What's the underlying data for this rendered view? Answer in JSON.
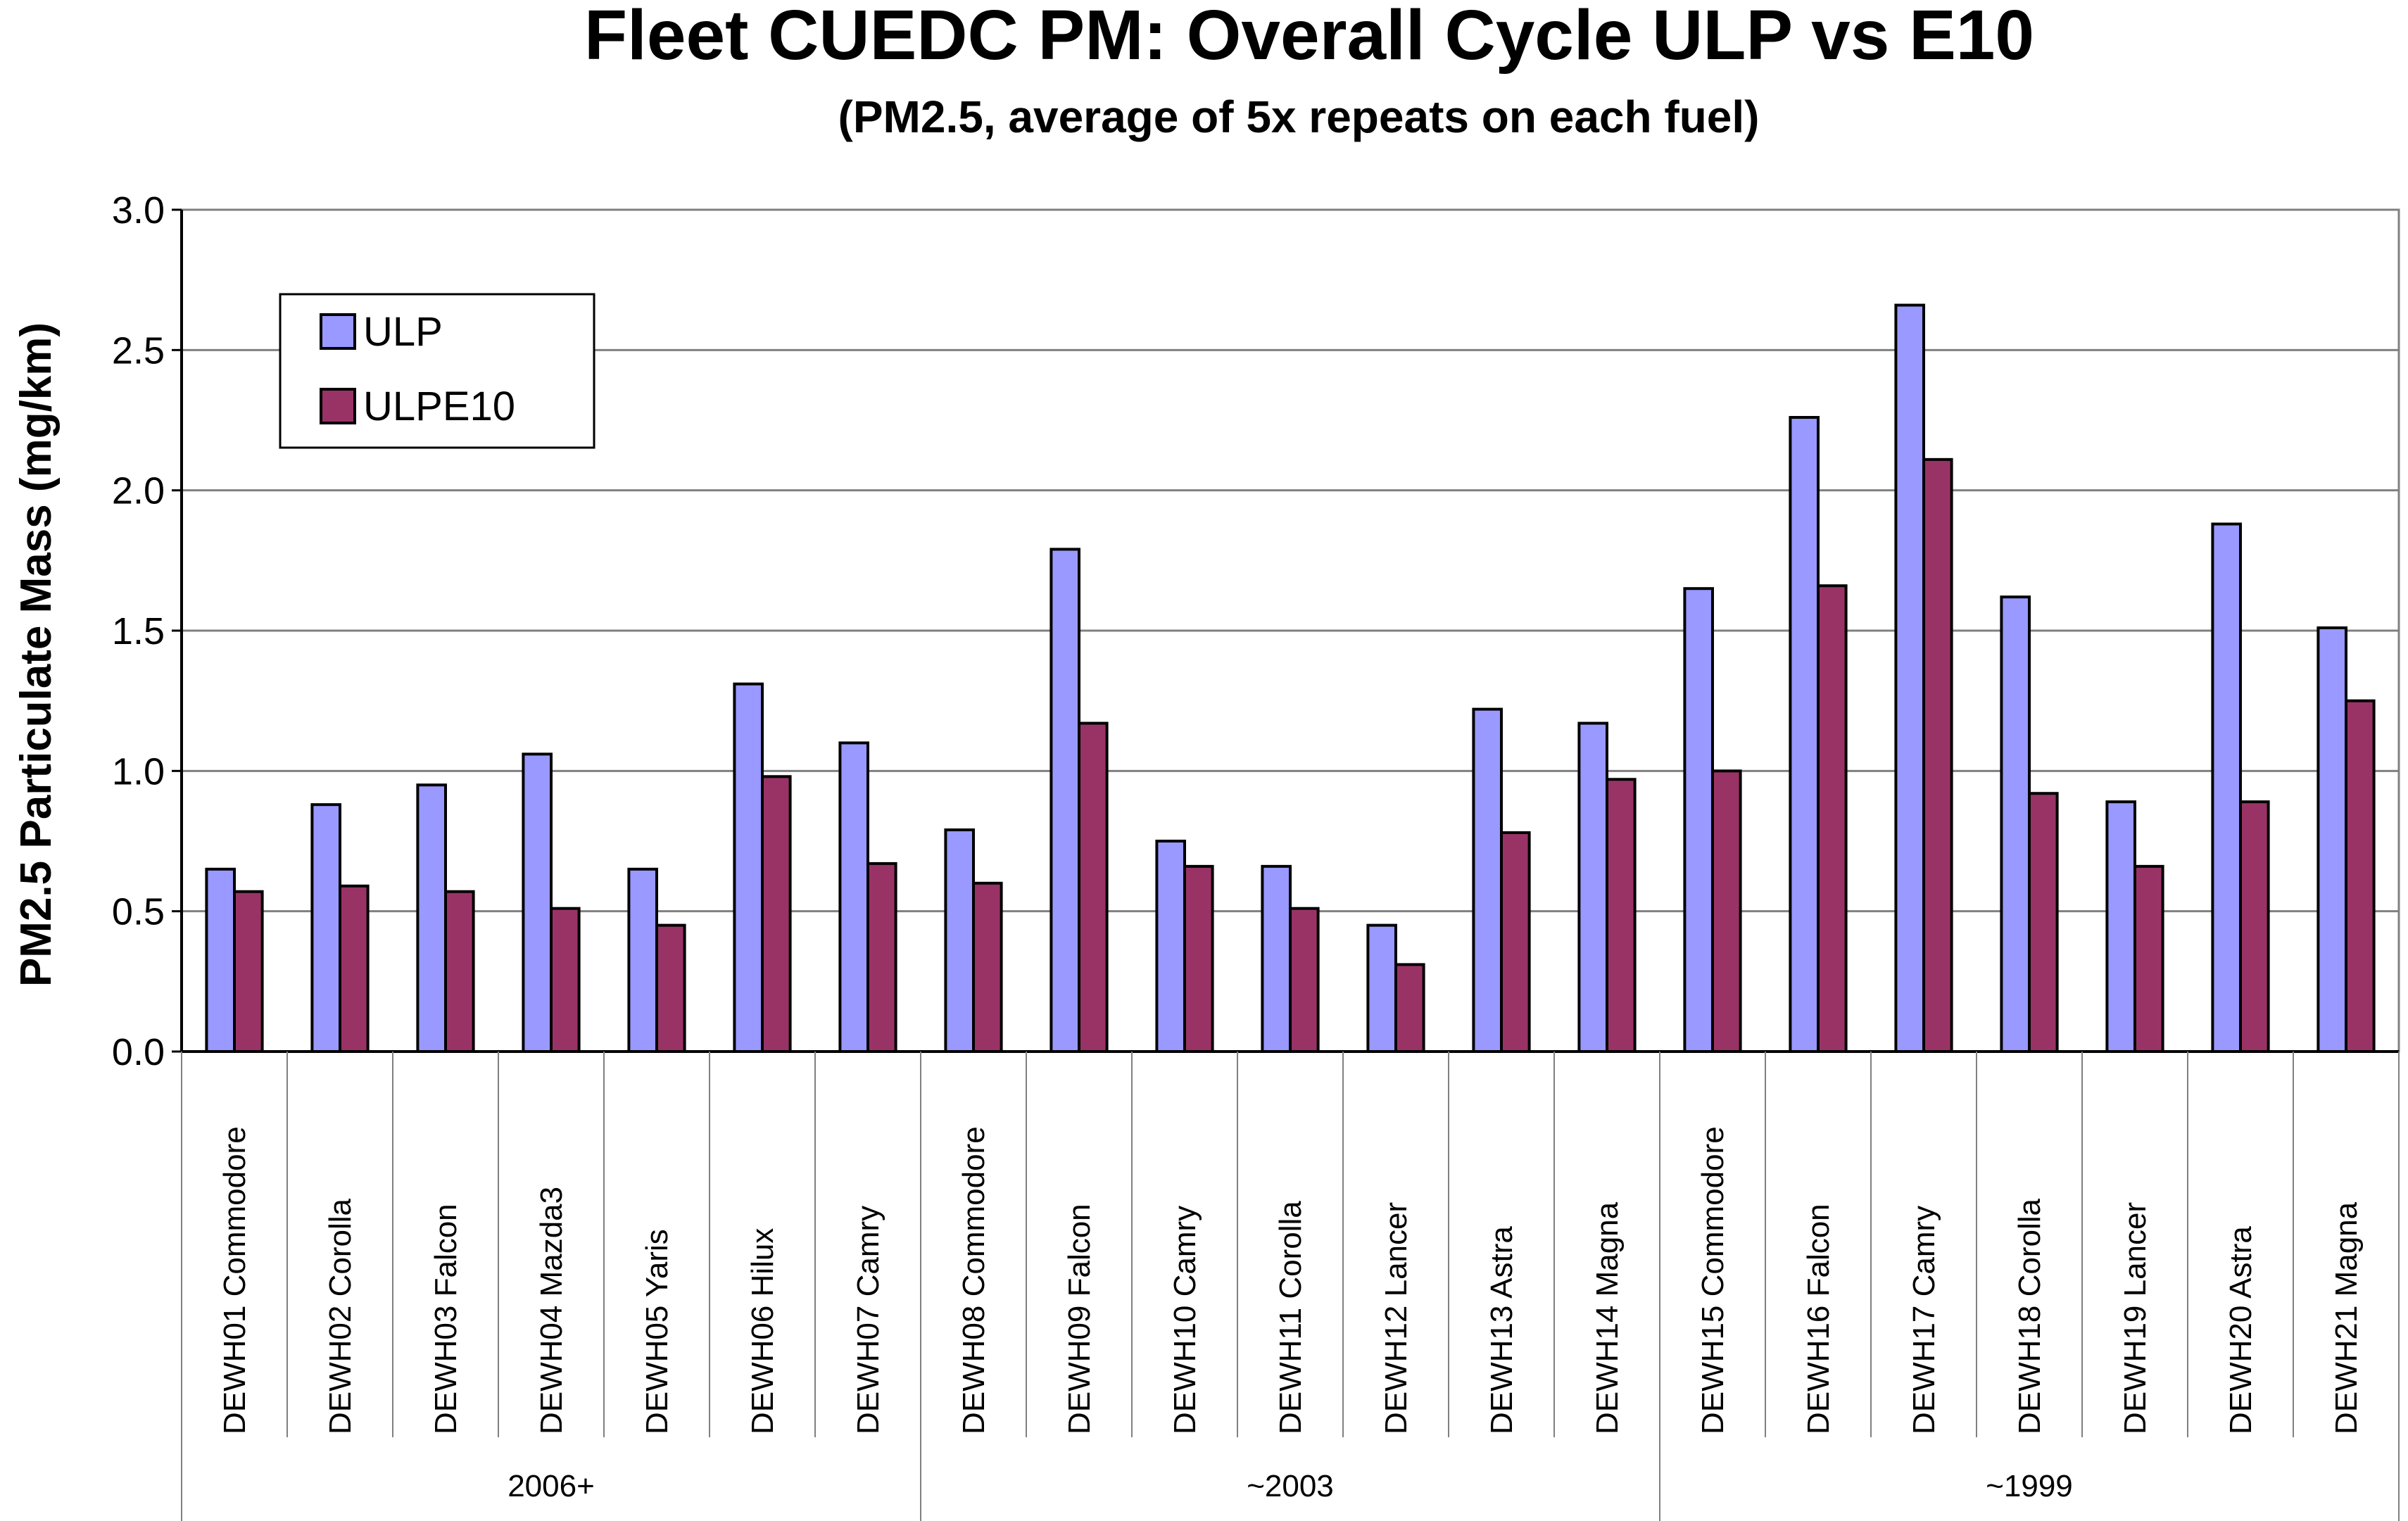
{
  "chart_data": {
    "type": "bar",
    "title": "Fleet CUEDC PM: Overall Cycle ULP vs E10",
    "subtitle": "(PM2.5, average of 5x repeats on each fuel)",
    "xlabel": "",
    "ylabel": "PM2.5 Particulate Mass (mg/km)",
    "ylim": [
      0,
      3.0
    ],
    "yticks": [
      "0.0",
      "0.5",
      "1.0",
      "1.5",
      "2.0",
      "2.5",
      "3.0"
    ],
    "grid": true,
    "legend_position": "top-left",
    "categories": [
      "DEWH01 Commodore",
      "DEWH02 Corolla",
      "DEWH03 Falcon",
      "DEWH04 Mazda3",
      "DEWH05 Yaris",
      "DEWH06 Hilux",
      "DEWH07 Camry",
      "DEWH08 Commodore",
      "DEWH09 Falcon",
      "DEWH10 Camry",
      "DEWH11 Corolla",
      "DEWH12 Lancer",
      "DEWH13 Astra",
      "DEWH14 Magna",
      "DEWH15 Commodore",
      "DEWH16 Falcon",
      "DEWH17 Camry",
      "DEWH18 Corolla",
      "DEWH19 Lancer",
      "DEWH20 Astra",
      "DEWH21 Magna"
    ],
    "groups": [
      {
        "label": "2006+",
        "count": 7
      },
      {
        "label": "~2003",
        "count": 7
      },
      {
        "label": "~1999",
        "count": 7
      }
    ],
    "series": [
      {
        "name": "ULP",
        "color": "#9999ff",
        "values": [
          0.65,
          0.88,
          0.95,
          1.06,
          0.65,
          1.31,
          1.1,
          0.79,
          1.79,
          0.75,
          0.66,
          0.45,
          1.22,
          1.17,
          1.65,
          2.26,
          2.66,
          1.62,
          0.89,
          1.88,
          1.51
        ]
      },
      {
        "name": "ULPE10",
        "color": "#993366",
        "values": [
          0.57,
          0.59,
          0.57,
          0.51,
          0.45,
          0.98,
          0.67,
          0.6,
          1.17,
          0.66,
          0.51,
          0.31,
          0.78,
          0.97,
          1.0,
          1.66,
          2.11,
          0.92,
          0.66,
          0.89,
          1.25
        ]
      }
    ]
  }
}
